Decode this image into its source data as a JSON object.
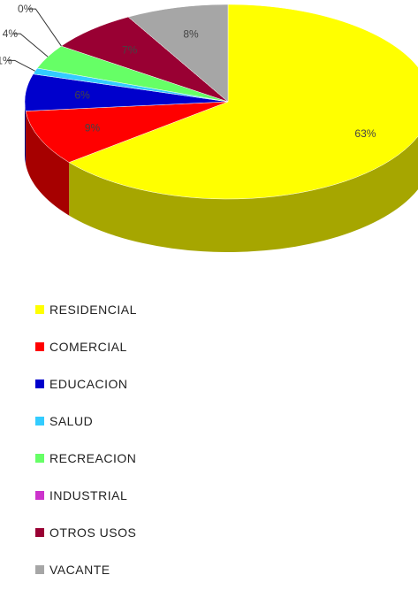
{
  "chart_data": {
    "type": "pie",
    "title": "",
    "legend_position": "bottom-left",
    "categories": [
      "RESIDENCIAL",
      "COMERCIAL",
      "EDUCACION",
      "SALUD",
      "RECREACION",
      "INDUSTRIAL",
      "OTROS USOS",
      "VACANTE"
    ],
    "values": [
      63,
      9,
      6,
      1,
      4,
      0,
      7,
      8
    ],
    "labels": [
      "63%",
      "9%",
      "6%",
      "1%",
      "4%",
      "0%",
      "7%",
      "8%"
    ],
    "colors": [
      "#ffff00",
      "#ff0000",
      "#0000cc",
      "#33ccff",
      "#66ff66",
      "#cc33cc",
      "#990033",
      "#a6a6a6"
    ],
    "side_colors": [
      "#a6a600",
      "#a60000",
      "#000085",
      "#2185a6",
      "#42a642",
      "#852185",
      "#630021",
      "#6c6c6c"
    ]
  }
}
